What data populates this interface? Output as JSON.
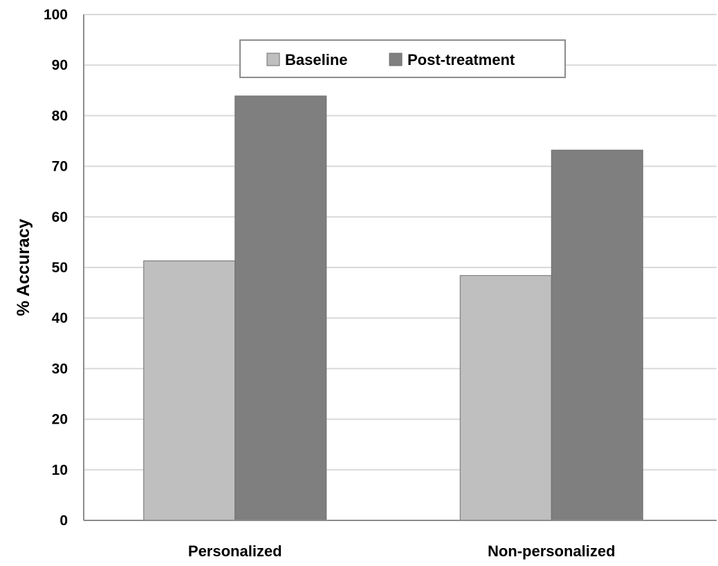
{
  "chart_data": {
    "type": "bar",
    "categories": [
      "Personalized",
      "Non-personalized"
    ],
    "series": [
      {
        "name": "Baseline",
        "values": [
          51.3,
          48.4
        ],
        "color": "#bfbfbf"
      },
      {
        "name": "Post-treatment",
        "values": [
          83.9,
          73.2
        ],
        "color": "#7f7f7f"
      }
    ],
    "xlabel": "",
    "ylabel": "% Accuracy",
    "ylim": [
      0,
      100
    ],
    "yticks": [
      0,
      10,
      20,
      30,
      40,
      50,
      60,
      70,
      80,
      90,
      100
    ],
    "grid": true,
    "legend_position": "top-center",
    "gridline_color": "#d9d9d9",
    "axis_color": "#8c8c8c"
  }
}
